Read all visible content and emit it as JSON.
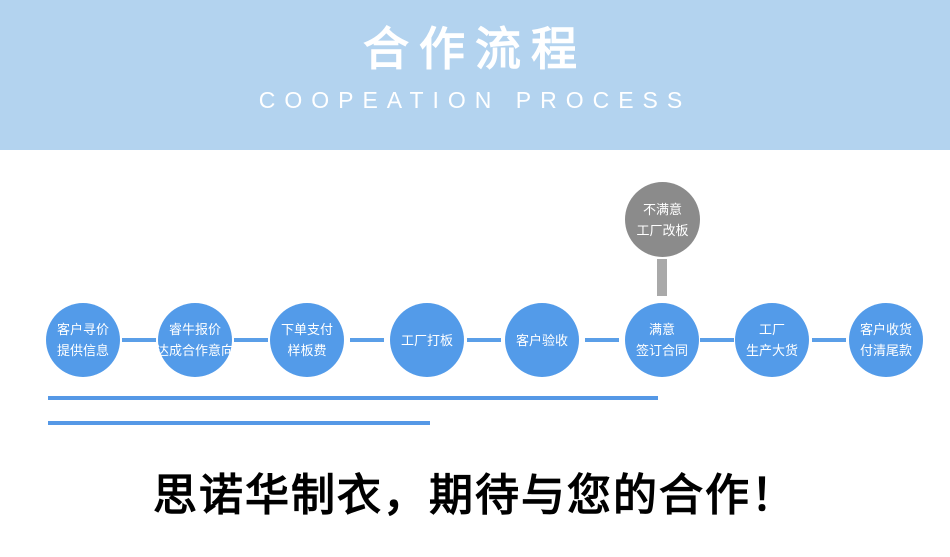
{
  "colors": {
    "header_bg": "#b3d3ef",
    "title_text": "#ffffff",
    "subtitle_text": "#ffffff",
    "circle_blue": "#539be9",
    "connector_blue": "#5b9fe8",
    "underline_blue": "#5598e6",
    "gray_circle": "#8b8b8b",
    "gray_bar": "#a9a9a9",
    "headline_text": "#000000"
  },
  "header": {
    "title": "合作流程",
    "subtitle": "COOPEATION PROCESS"
  },
  "flow": {
    "steps": [
      {
        "line1": "客户寻价",
        "line2": "提供信息"
      },
      {
        "line1": "睿牛报价",
        "line2": "达成合作意向"
      },
      {
        "line1": "下单支付",
        "line2": "样板费"
      },
      {
        "line1": "工厂打板",
        "line2": ""
      },
      {
        "line1": "客户验收",
        "line2": ""
      },
      {
        "line1": "满意",
        "line2": "签订合同"
      },
      {
        "line1": "工厂",
        "line2": "生产大货"
      },
      {
        "line1": "客户收货",
        "line2": "付清尾款"
      }
    ],
    "alt_branch": {
      "line1": "不满意",
      "line2": "工厂改板"
    }
  },
  "footer": {
    "headline": "思诺华制衣，期待与您的合作！"
  }
}
